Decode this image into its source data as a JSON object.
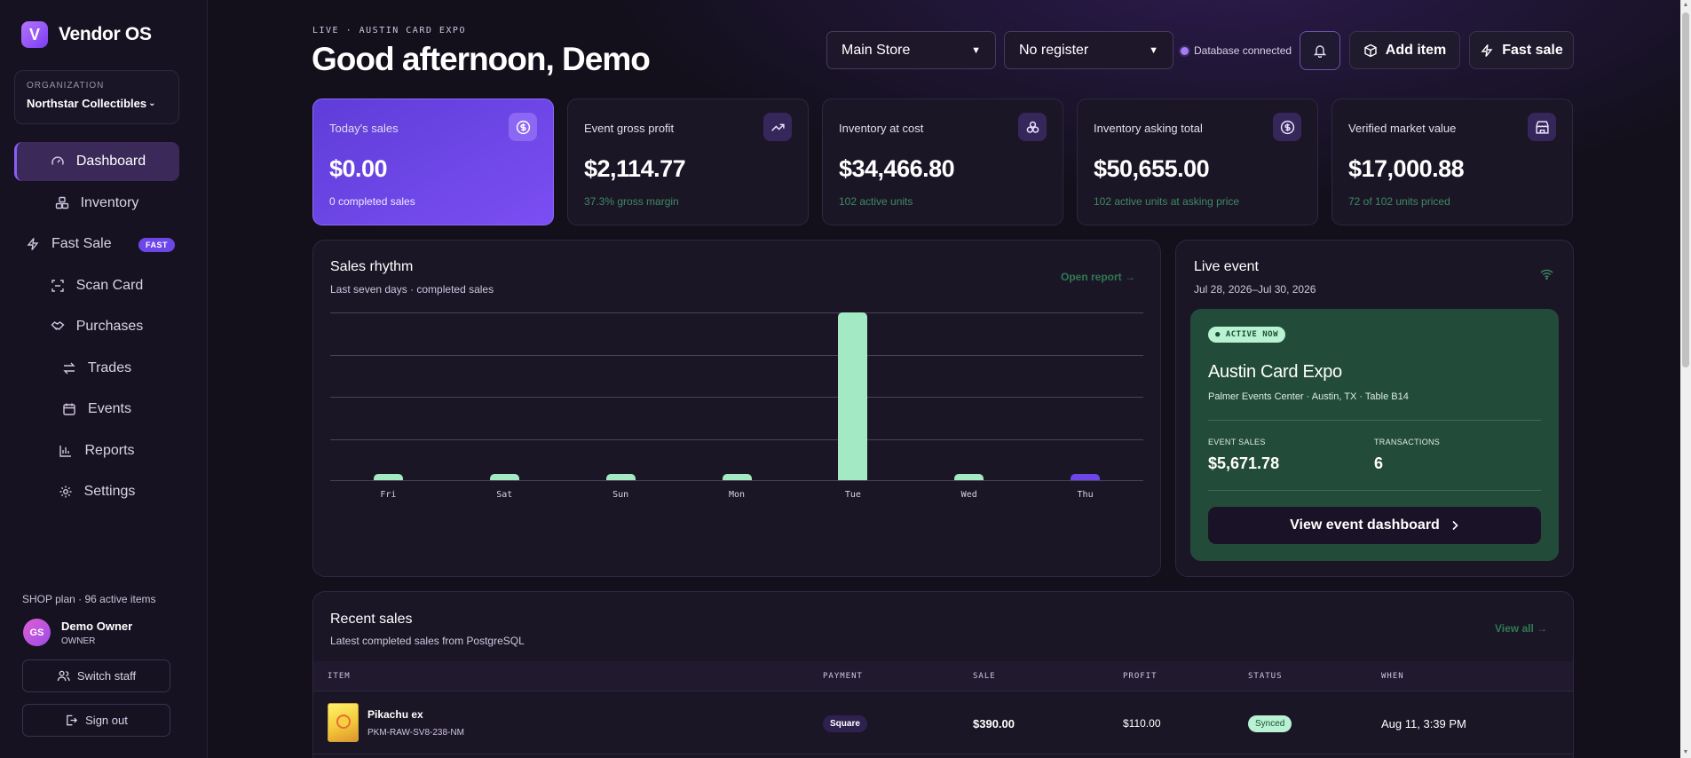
{
  "brand": {
    "logo_letter": "V",
    "name": "Vendor OS"
  },
  "org": {
    "label": "ORGANIZATION",
    "value": "Northstar Collectibles"
  },
  "nav": {
    "items": [
      {
        "label": "Dashboard",
        "icon": "gauge-icon",
        "active": true
      },
      {
        "label": "Inventory",
        "icon": "boxes-icon"
      },
      {
        "label": "Fast Sale",
        "icon": "bolt-icon",
        "badge": "FAST"
      },
      {
        "label": "Scan Card",
        "icon": "scan-icon"
      },
      {
        "label": "Purchases",
        "icon": "handshake-icon"
      },
      {
        "label": "Trades",
        "icon": "swap-icon"
      },
      {
        "label": "Events",
        "icon": "calendar-icon"
      },
      {
        "label": "Reports",
        "icon": "bar-chart-icon"
      },
      {
        "label": "Settings",
        "icon": "gear-icon"
      }
    ]
  },
  "plan": "SHOP plan · 96 active items",
  "user": {
    "initials": "GS",
    "name": "Demo Owner",
    "role": "OWNER"
  },
  "side_buttons": {
    "switch_staff": "Switch staff",
    "sign_out": "Sign out"
  },
  "header": {
    "live_tag": "LIVE · AUSTIN CARD EXPO",
    "greeting": "Good afternoon, Demo",
    "store_select": "Main Store",
    "register_select": "No register",
    "db_status": "Database connected",
    "add_item": "Add item",
    "fast_sale": "Fast sale"
  },
  "stats": [
    {
      "label": "Today's sales",
      "value": "$0.00",
      "sub": "0 completed sales",
      "icon": "dollar-icon"
    },
    {
      "label": "Event gross profit",
      "value": "$2,114.77",
      "sub": "37.3% gross margin",
      "icon": "trend-up-icon"
    },
    {
      "label": "Inventory at cost",
      "value": "$34,466.80",
      "sub": "102 active units",
      "icon": "boxes-icon"
    },
    {
      "label": "Inventory asking total",
      "value": "$50,655.00",
      "sub": "102 active units at asking price",
      "icon": "dollar-icon"
    },
    {
      "label": "Verified market value",
      "value": "$17,000.88",
      "sub": "72 of 102 units priced",
      "icon": "store-icon"
    }
  ],
  "sales_rhythm": {
    "title": "Sales rhythm",
    "subtitle": "Last seven days · completed sales",
    "link": "Open report →"
  },
  "chart_data": {
    "type": "bar",
    "categories": [
      "Fri",
      "Sat",
      "Sun",
      "Mon",
      "Tue",
      "Wed",
      "Thu"
    ],
    "values": [
      0,
      0,
      0,
      0,
      1,
      0,
      0
    ],
    "current_category": "Thu",
    "colors": {
      "bar": "#a3e9c3",
      "current": "#6d46e8"
    },
    "grid": true,
    "gridlines": 4,
    "title": "",
    "xlabel": "",
    "ylabel": ""
  },
  "live_event": {
    "title": "Live event",
    "dates": "Jul 28, 2026–Jul 30, 2026",
    "status": "● ACTIVE NOW",
    "name": "Austin Card Expo",
    "location": "Palmer Events Center · Austin, TX · Table B14",
    "sales_label": "EVENT SALES",
    "sales_value": "$5,671.78",
    "tx_label": "TRANSACTIONS",
    "tx_value": "6",
    "button": "View event dashboard"
  },
  "recent_sales": {
    "title": "Recent sales",
    "subtitle": "Latest completed sales from PostgreSQL",
    "link": "View all →",
    "columns": [
      "ITEM",
      "PAYMENT",
      "SALE",
      "PROFIT",
      "STATUS",
      "WHEN"
    ],
    "rows": [
      {
        "item": "Pikachu ex",
        "sku": "PKM-RAW-SV8-238-NM",
        "payment": "Square",
        "sale": "$390.00",
        "profit": "$110.00",
        "status": "Synced",
        "when": "Aug 11, 3:39 PM"
      }
    ]
  },
  "colors": {
    "accent": "#7b4ef3",
    "positive": "#a3e9c3",
    "event_bg": "#234b39"
  }
}
